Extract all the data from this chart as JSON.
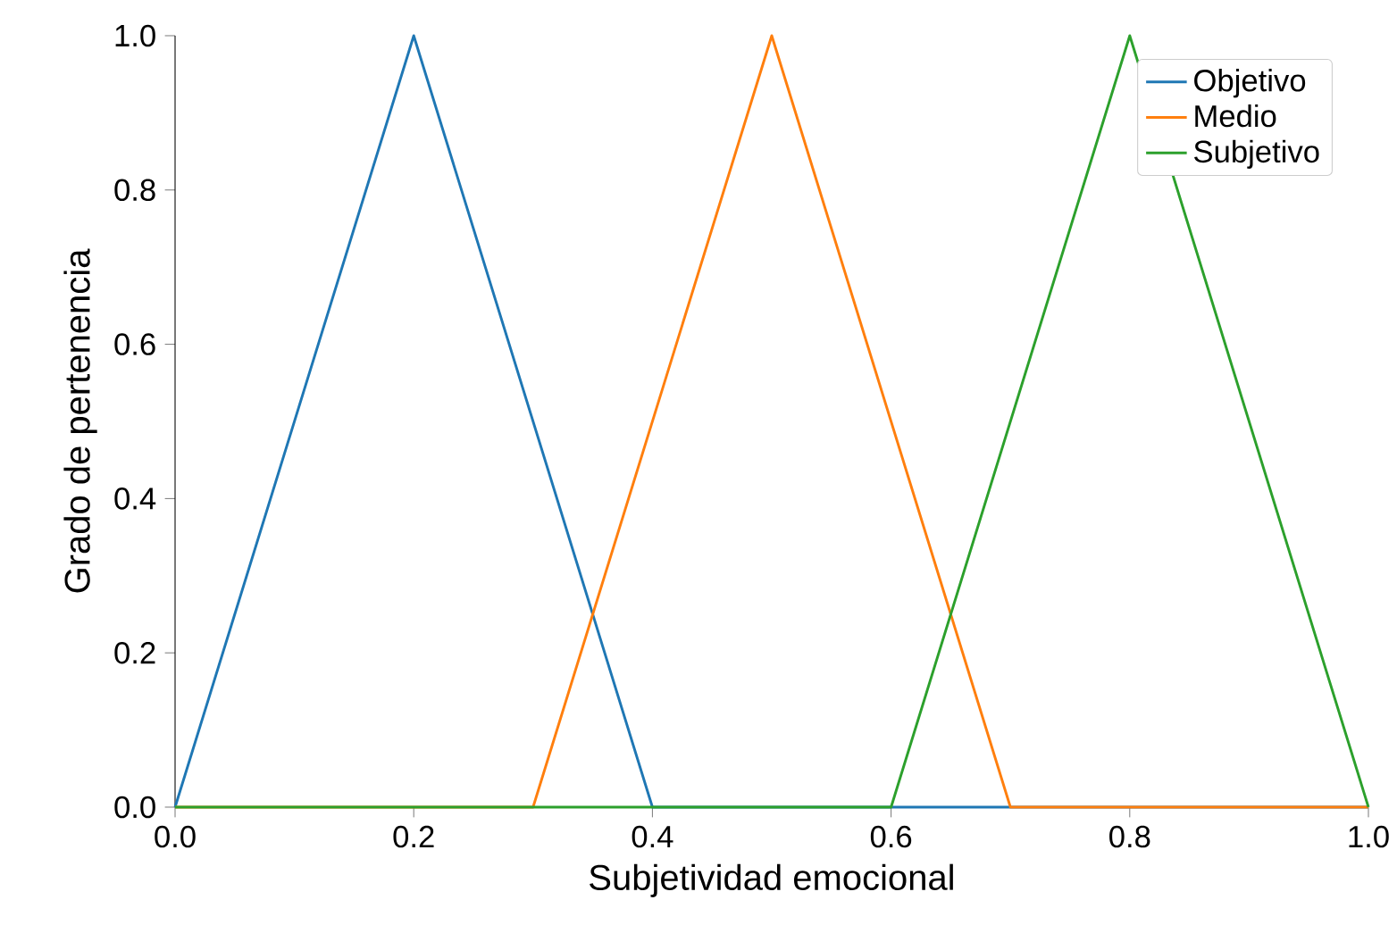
{
  "chart_data": {
    "type": "line",
    "xlabel": "Subjetividad emocional",
    "ylabel": "Grado de pertenencia",
    "series": [
      {
        "name": "Objetivo",
        "color": "#1f77b4",
        "x": [
          0,
          0.2,
          0.4,
          1.0
        ],
        "values": [
          0,
          1,
          0,
          0
        ]
      },
      {
        "name": "Medio",
        "color": "#ff7f0e",
        "x": [
          0,
          0.3,
          0.5,
          0.7,
          1.0
        ],
        "values": [
          0,
          0,
          1,
          0,
          0
        ]
      },
      {
        "name": "Subjetivo",
        "color": "#2ca02c",
        "x": [
          0,
          0.6,
          0.8,
          1.0
        ],
        "values": [
          0,
          0,
          1,
          0
        ]
      }
    ],
    "xlim": [
      0,
      1
    ],
    "ylim": [
      0,
      1
    ],
    "xticks": [
      {
        "value": 0,
        "label": "0.0"
      },
      {
        "value": 0.2,
        "label": "0.2"
      },
      {
        "value": 0.4,
        "label": "0.4"
      },
      {
        "value": 0.6,
        "label": "0.6"
      },
      {
        "value": 0.8,
        "label": "0.8"
      },
      {
        "value": 1,
        "label": "1.0"
      }
    ],
    "yticks": [
      {
        "value": 0,
        "label": "0.0"
      },
      {
        "value": 0.2,
        "label": "0.2"
      },
      {
        "value": 0.4,
        "label": "0.4"
      },
      {
        "value": 0.6,
        "label": "0.6"
      },
      {
        "value": 0.8,
        "label": "0.8"
      },
      {
        "value": 1,
        "label": "1.0"
      }
    ],
    "legend": "top right"
  }
}
